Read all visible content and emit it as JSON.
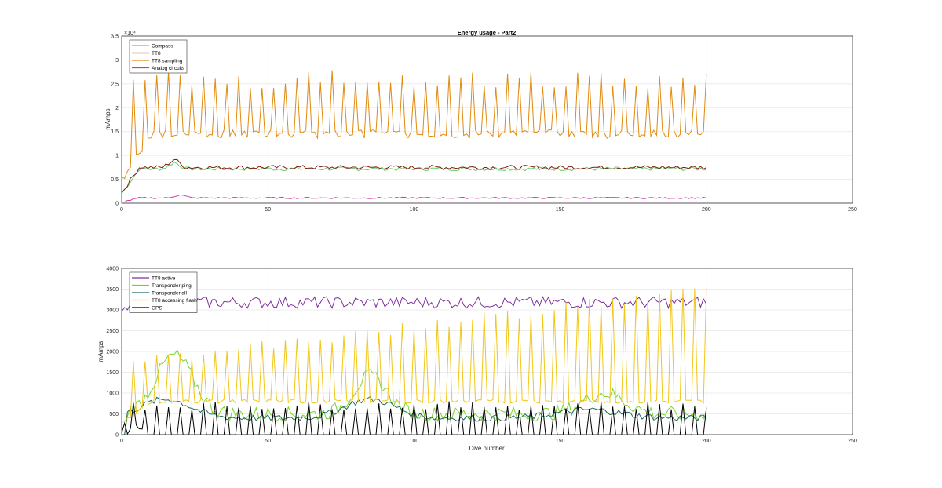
{
  "chart_data": [
    {
      "type": "line",
      "title": "Energy usage - Part2",
      "xlabel": "",
      "ylabel": "mAmps",
      "y_exponent_label": "×10⁴",
      "xlim": [
        0,
        250
      ],
      "ylim": [
        0,
        35000
      ],
      "xticks": [
        0,
        50,
        100,
        150,
        200,
        250
      ],
      "yticks": [
        0,
        5000,
        10000,
        15000,
        20000,
        25000,
        30000,
        35000
      ],
      "ytick_labels": [
        "0",
        "0.5",
        "1",
        "1.5",
        "2",
        "2.5",
        "3",
        "3.5"
      ],
      "grid": true,
      "legend": "top-left",
      "series": [
        {
          "name": "Compass",
          "color": "#66cc66",
          "kind": "level",
          "base": 7200,
          "amp": 400,
          "start": 2000,
          "peak_at": 18,
          "peak": 8600
        },
        {
          "name": "TT8",
          "color": "#7a1f0f",
          "kind": "level",
          "base": 7500,
          "amp": 450,
          "start": 2200,
          "peak_at": 18,
          "peak": 9200
        },
        {
          "name": "TT8 sampling",
          "color": "#e08a10",
          "kind": "spiky",
          "base": 14500,
          "spike": 26000,
          "period": 4,
          "start": 5000
        },
        {
          "name": "Analog circuits",
          "color": "#d633a8",
          "kind": "level",
          "base": 1100,
          "amp": 150,
          "start": 200,
          "peak_at": 20,
          "peak": 1800
        }
      ]
    },
    {
      "type": "line",
      "title": "",
      "xlabel": "Dive number",
      "ylabel": "mAmps",
      "xlim": [
        0,
        250
      ],
      "ylim": [
        0,
        4000
      ],
      "xticks": [
        0,
        50,
        100,
        150,
        200,
        250
      ],
      "yticks": [
        0,
        500,
        1000,
        1500,
        2000,
        2500,
        3000,
        3500,
        4000
      ],
      "ytick_labels": [
        "0",
        "500",
        "1000",
        "1500",
        "2000",
        "2500",
        "3000",
        "3500",
        "4000"
      ],
      "grid": true,
      "legend": "top-left",
      "series": [
        {
          "name": "TT8 active",
          "color": "#7e2f9e",
          "kind": "level",
          "base": 3180,
          "amp": 140,
          "start": 2900,
          "peak_at": 0,
          "peak": 3180
        },
        {
          "name": "Transponder ping",
          "color": "#77d42c",
          "kind": "hump",
          "base": 500,
          "amp": 1500,
          "start": 0
        },
        {
          "name": "Transponder all",
          "color": "#1f6b5a",
          "kind": "hump2",
          "base": 400,
          "amp": 550,
          "start": 0
        },
        {
          "name": "TT8 accessing flash",
          "color": "#f2c618",
          "kind": "spiky",
          "base": 800,
          "spike": 1700,
          "period": 4,
          "start": 300
        },
        {
          "name": "GPS",
          "color": "#000000",
          "kind": "gps",
          "base": 0,
          "spike": 700,
          "period": 4,
          "start": 300
        }
      ]
    }
  ]
}
